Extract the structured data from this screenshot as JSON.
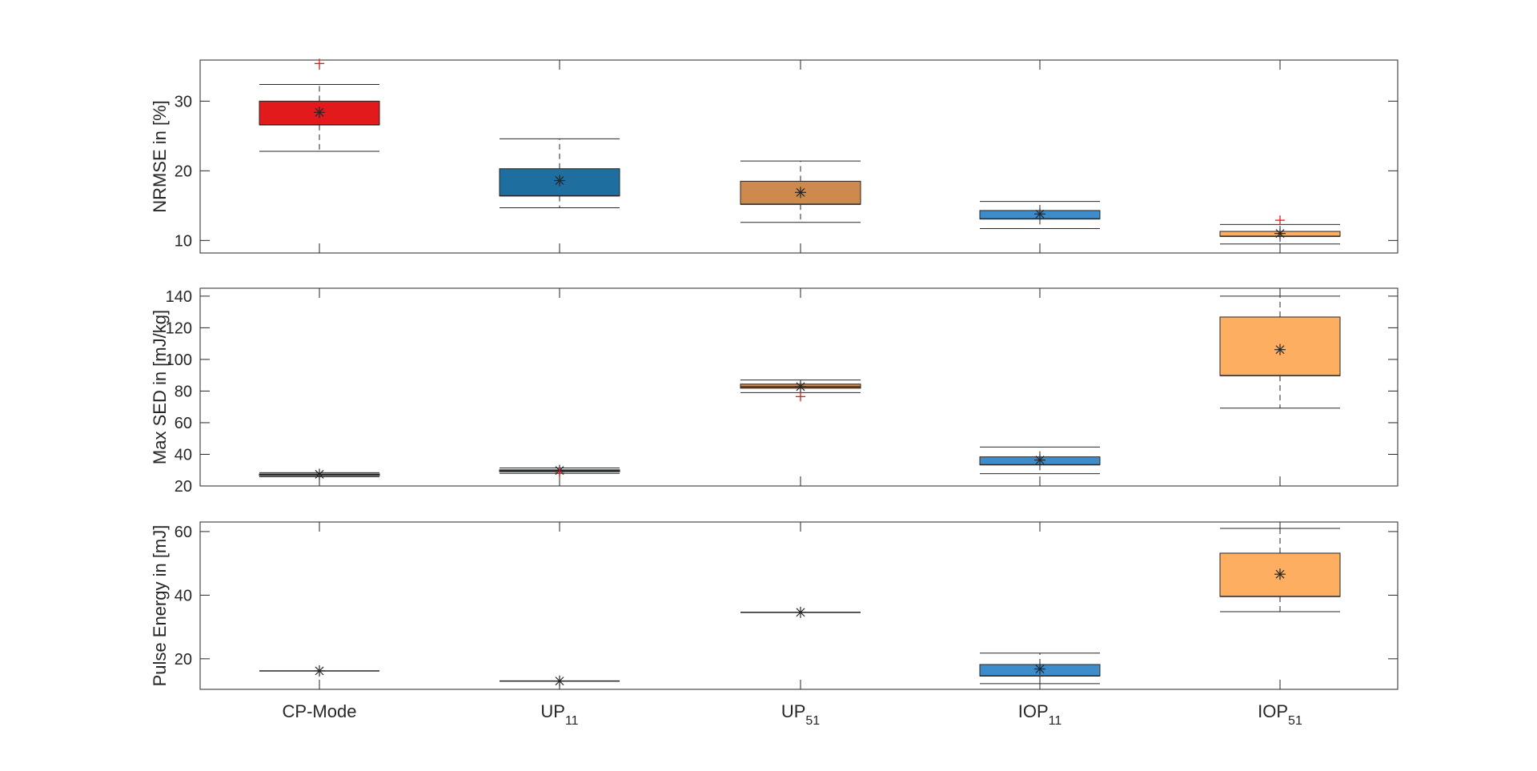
{
  "chart_data": {
    "type": "box",
    "categories": [
      {
        "main": "CP-Mode",
        "sub": ""
      },
      {
        "main": "UP",
        "sub": "11"
      },
      {
        "main": "UP",
        "sub": "51"
      },
      {
        "main": "IOP",
        "sub": "11"
      },
      {
        "main": "IOP",
        "sub": "51"
      }
    ],
    "colors": [
      "#e31a1c",
      "#1f6ea0",
      "#cd8a4c",
      "#3d8ccb",
      "#fdae61"
    ],
    "mean_marker": "asterisk",
    "outlier_color": "#e31a1c",
    "panels": [
      {
        "ylabel": "NRMSE in [%]",
        "ylim": [
          8.2,
          35.9
        ],
        "yticks": [
          10,
          20,
          30
        ],
        "boxes": [
          {
            "q1": 26.6,
            "median": 26.6,
            "q3": 30.0,
            "whisker_low": 22.8,
            "whisker_high": 32.4,
            "mean": 28.4,
            "outliers": [
              35.4
            ]
          },
          {
            "q1": 16.4,
            "median": 16.4,
            "q3": 20.3,
            "whisker_low": 14.7,
            "whisker_high": 24.6,
            "mean": 18.6,
            "outliers": []
          },
          {
            "q1": 15.2,
            "median": 15.2,
            "q3": 18.5,
            "whisker_low": 12.6,
            "whisker_high": 21.4,
            "mean": 16.9,
            "outliers": []
          },
          {
            "q1": 13.1,
            "median": 13.1,
            "q3": 14.3,
            "whisker_low": 11.7,
            "whisker_high": 15.6,
            "mean": 13.8,
            "outliers": []
          },
          {
            "q1": 10.6,
            "median": 10.6,
            "q3": 11.3,
            "whisker_low": 9.5,
            "whisker_high": 12.3,
            "mean": 11.0,
            "outliers": [
              12.9
            ]
          }
        ]
      },
      {
        "ylabel": "Max SED in [mJ/kg]",
        "ylim": [
          20,
          145
        ],
        "yticks": [
          20,
          40,
          60,
          80,
          100,
          120,
          140
        ],
        "boxes": [
          {
            "q1": 26.6,
            "median": 27.0,
            "q3": 27.6,
            "whisker_low": 25.8,
            "whisker_high": 28.4,
            "mean": 27.4,
            "outliers": []
          },
          {
            "q1": 29.0,
            "median": 29.6,
            "q3": 30.2,
            "whisker_low": 28.0,
            "whisker_high": 31.4,
            "mean": 29.8,
            "outliers": [
              28.8
            ]
          },
          {
            "q1": 81.8,
            "median": 82.6,
            "q3": 84.4,
            "whisker_low": 79.0,
            "whisker_high": 87.0,
            "mean": 82.8,
            "outliers": [
              76.5
            ]
          },
          {
            "q1": 33.4,
            "median": 33.4,
            "q3": 38.4,
            "whisker_low": 27.8,
            "whisker_high": 44.6,
            "mean": 36.4,
            "outliers": []
          },
          {
            "q1": 89.8,
            "median": 89.8,
            "q3": 126.8,
            "whisker_low": 69.2,
            "whisker_high": 140.0,
            "mean": 106.2,
            "outliers": []
          }
        ]
      },
      {
        "ylabel": "Pulse Energy in [mJ]",
        "ylim": [
          10.4,
          63
        ],
        "yticks": [
          20,
          40,
          60
        ],
        "boxes": [
          {
            "q1": 16.2,
            "median": 16.2,
            "q3": 16.2,
            "whisker_low": 16.2,
            "whisker_high": 16.2,
            "mean": 16.2,
            "outliers": []
          },
          {
            "q1": 13.0,
            "median": 13.0,
            "q3": 13.0,
            "whisker_low": 13.0,
            "whisker_high": 13.0,
            "mean": 13.0,
            "outliers": []
          },
          {
            "q1": 34.6,
            "median": 34.6,
            "q3": 34.6,
            "whisker_low": 34.6,
            "whisker_high": 34.6,
            "mean": 34.6,
            "outliers": []
          },
          {
            "q1": 14.6,
            "median": 14.6,
            "q3": 18.2,
            "whisker_low": 12.2,
            "whisker_high": 21.8,
            "mean": 16.8,
            "outliers": []
          },
          {
            "q1": 39.6,
            "median": 39.6,
            "q3": 53.2,
            "whisker_low": 34.8,
            "whisker_high": 61.0,
            "mean": 46.6,
            "outliers": []
          }
        ]
      }
    ]
  }
}
